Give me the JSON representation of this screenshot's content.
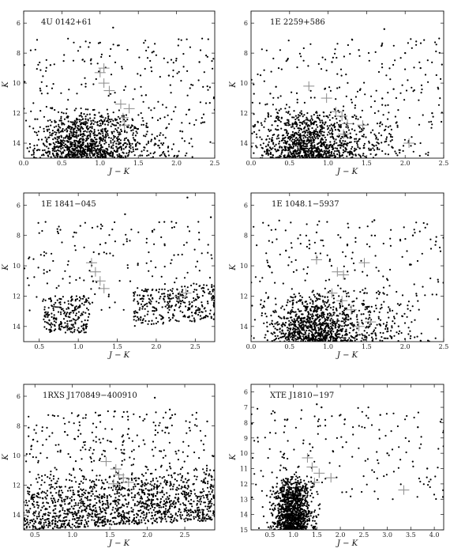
{
  "chart_data": [
    {
      "type": "scatter",
      "title": "4U 0142+61",
      "xlabel": "J − K",
      "ylabel": "K",
      "xlim": [
        0.0,
        2.5
      ],
      "ylim": [
        5.2,
        15.0
      ],
      "y_inverted": true,
      "xticks": [
        "0.0",
        "0.5",
        "1.0",
        "1.5",
        "2.0",
        "2.5"
      ],
      "yticks": [
        "6",
        "8",
        "10",
        "12",
        "14"
      ],
      "field_stars": {
        "bright": [
          [
            1.17,
            6.3
          ],
          [
            1.0,
            7.3
          ],
          [
            1.7,
            7.9
          ],
          [
            0.35,
            8.8
          ],
          [
            1.9,
            9.5
          ],
          [
            2.3,
            8.6
          ],
          [
            0.15,
            12.4
          ],
          [
            2.05,
            13.2
          ],
          [
            0.22,
            10.5
          ],
          [
            1.6,
            10.8
          ]
        ],
        "cluster_k_range": [
          11.5,
          15.0
        ],
        "cluster_jk_center": 0.75
      },
      "candidates": [
        [
          1.0,
          9.3
        ],
        [
          1.05,
          10.0
        ],
        [
          1.12,
          10.5
        ],
        [
          1.27,
          11.4
        ],
        [
          1.38,
          11.7
        ],
        [
          1.3,
          12.3
        ],
        [
          1.32,
          12.8
        ],
        [
          1.05,
          9.0
        ]
      ]
    },
    {
      "type": "scatter",
      "title": "1E 2259+586",
      "xlabel": "J − K",
      "ylabel": "K",
      "xlim": [
        0.0,
        2.5
      ],
      "ylim": [
        5.2,
        15.0
      ],
      "y_inverted": true,
      "xticks": [
        "0.0",
        "0.5",
        "1.0",
        "1.5",
        "2.0",
        "2.5"
      ],
      "yticks": [
        "6",
        "8",
        "10",
        "12",
        "14"
      ],
      "field_stars": {
        "bright": [
          [
            1.73,
            6.4
          ],
          [
            1.4,
            7.8
          ],
          [
            2.0,
            8.0
          ],
          [
            2.2,
            9.0
          ],
          [
            1.05,
            8.6
          ],
          [
            2.35,
            12.0
          ],
          [
            0.25,
            10.7
          ],
          [
            1.85,
            10.4
          ]
        ],
        "cluster_k_range": [
          11.5,
          15.0
        ],
        "cluster_jk_center": 0.7
      },
      "candidates": [
        [
          0.75,
          10.2
        ],
        [
          0.98,
          11.0
        ],
        [
          1.1,
          11.9
        ],
        [
          1.18,
          12.2
        ],
        [
          1.25,
          12.7
        ],
        [
          1.2,
          13.4
        ],
        [
          1.45,
          12.8
        ],
        [
          2.05,
          14.0
        ]
      ]
    },
    {
      "type": "scatter",
      "title": "1E 1841−045",
      "xlabel": "J − K",
      "ylabel": "K",
      "xlim": [
        0.3,
        2.75
      ],
      "ylim": [
        5.2,
        15.0
      ],
      "y_inverted": true,
      "xticks": [
        "0.5",
        "1.0",
        "1.5",
        "2.0",
        "2.5"
      ],
      "yticks": [
        "6",
        "8",
        "10",
        "12",
        "14"
      ],
      "field_stars": {
        "bright": [
          [
            2.4,
            5.5
          ],
          [
            1.95,
            7.7
          ],
          [
            1.6,
            6.6
          ],
          [
            2.7,
            6.8
          ],
          [
            0.95,
            7.8
          ],
          [
            1.35,
            8.5
          ],
          [
            0.6,
            10.4
          ]
        ],
        "cluster_k_range": [
          11.0,
          14.2
        ],
        "cluster_jk_center": 2.2
      },
      "candidates": [
        [
          1.17,
          9.8
        ],
        [
          1.22,
          10.4
        ],
        [
          1.28,
          11.0
        ],
        [
          1.33,
          11.5
        ],
        [
          2.38,
          11.8
        ],
        [
          2.3,
          12.0
        ]
      ]
    },
    {
      "type": "scatter",
      "title": "1E 1048.1−5937",
      "xlabel": "J − K",
      "ylabel": "K",
      "xlim": [
        0.0,
        2.5
      ],
      "ylim": [
        5.2,
        15.0
      ],
      "y_inverted": true,
      "xticks": [
        "0.0",
        "0.5",
        "1.0",
        "1.5",
        "2.0",
        "2.5"
      ],
      "yticks": [
        "6",
        "8",
        "10",
        "12",
        "14"
      ],
      "field_stars": {
        "bright": [
          [
            1.05,
            5.9
          ],
          [
            1.6,
            7.0
          ],
          [
            2.1,
            8.0
          ],
          [
            0.85,
            7.8
          ],
          [
            2.4,
            8.4
          ],
          [
            1.25,
            8.6
          ]
        ],
        "cluster_k_range": [
          11.5,
          15.0
        ],
        "cluster_jk_center": 0.8
      },
      "candidates": [
        [
          0.85,
          9.6
        ],
        [
          1.12,
          10.4
        ],
        [
          1.2,
          10.6
        ],
        [
          1.47,
          9.8
        ],
        [
          1.05,
          11.8
        ],
        [
          1.18,
          12.3
        ],
        [
          1.3,
          12.9
        ],
        [
          1.55,
          13.7
        ],
        [
          1.4,
          14.0
        ]
      ]
    },
    {
      "type": "scatter",
      "title": "1RXS J170849−400910",
      "xlabel": "J − K",
      "ylabel": "K",
      "xlim": [
        0.35,
        2.9
      ],
      "ylim": [
        5.2,
        15.0
      ],
      "y_inverted": true,
      "xticks": [
        "0.5",
        "1.0",
        "1.5",
        "2.0",
        "2.5"
      ],
      "yticks": [
        "6",
        "8",
        "10",
        "12",
        "14"
      ],
      "field_stars": {
        "bright": [
          [
            2.1,
            6.1
          ],
          [
            2.3,
            6.9
          ],
          [
            1.35,
            7.3
          ],
          [
            2.8,
            7.7
          ],
          [
            0.9,
            8.4
          ],
          [
            1.75,
            8.2
          ]
        ],
        "cluster_k_range": [
          11.0,
          15.0
        ],
        "cluster_jk_center": 1.6
      },
      "candidates": [
        [
          1.45,
          10.4
        ],
        [
          1.58,
          10.9
        ],
        [
          1.62,
          11.3
        ],
        [
          1.68,
          11.5
        ],
        [
          1.75,
          11.8
        ],
        [
          1.55,
          11.9
        ]
      ]
    },
    {
      "type": "scatter",
      "title": "XTE J1810−197",
      "xlabel": "J − K",
      "ylabel": "K",
      "xlim": [
        0.1,
        4.2
      ],
      "ylim": [
        5.5,
        15.0
      ],
      "y_inverted": true,
      "xticks": [
        "0.5",
        "1.0",
        "1.5",
        "2.0",
        "2.5",
        "3.0",
        "3.5",
        "4.0"
      ],
      "yticks": [
        "6",
        "7",
        "8",
        "9",
        "10",
        "11",
        "12",
        "13",
        "14",
        "15"
      ],
      "field_stars": {
        "bright": [
          [
            1.5,
            6.8
          ],
          [
            1.6,
            7.0
          ],
          [
            2.85,
            7.5
          ],
          [
            3.65,
            8.3
          ],
          [
            2.05,
            9.6
          ],
          [
            1.35,
            9.4
          ],
          [
            0.8,
            10.3
          ],
          [
            3.0,
            10.0
          ],
          [
            3.85,
            11.0
          ]
        ],
        "cluster_k_range": [
          11.5,
          15.0
        ],
        "cluster_jk_center": 1.0
      },
      "candidates": [
        [
          1.3,
          10.3
        ],
        [
          1.4,
          10.9
        ],
        [
          1.55,
          11.3
        ],
        [
          1.8,
          11.6
        ],
        [
          1.45,
          11.9
        ],
        [
          3.35,
          12.4
        ]
      ]
    }
  ]
}
